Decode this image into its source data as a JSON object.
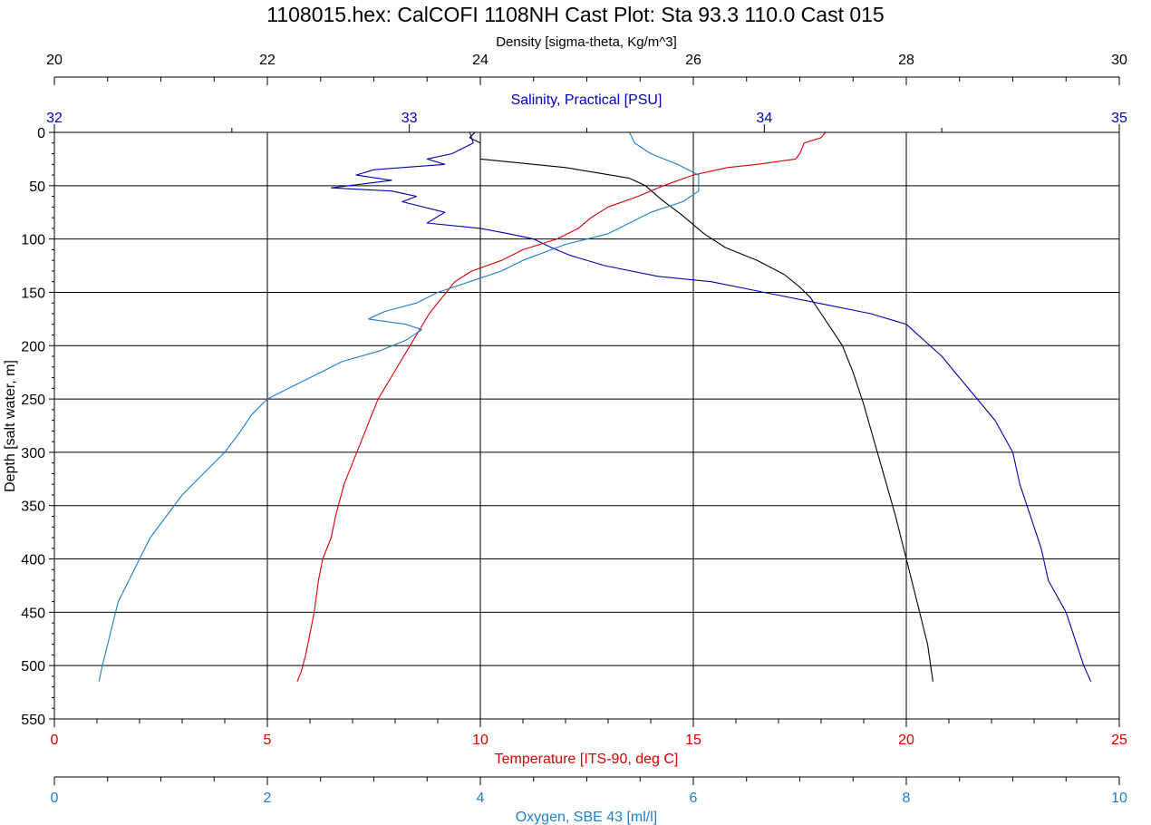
{
  "chart_data": {
    "type": "line",
    "title": "1108015.hex: CalCOFI 1108NH Cast Plot: Sta 93.3 110.0 Cast 015",
    "y_axis": {
      "label": "Depth [salt water, m]",
      "range": [
        0,
        550
      ],
      "ticks": [
        "0",
        "50",
        "100",
        "150",
        "200",
        "250",
        "300",
        "350",
        "400",
        "450",
        "500",
        "550"
      ],
      "reversed": true
    },
    "axes": {
      "density": {
        "label": "Density [sigma-theta, Kg/m^3]",
        "range": [
          20,
          30
        ],
        "ticks": [
          "20",
          "22",
          "24",
          "26",
          "28",
          "30"
        ],
        "position": "top",
        "color": "#000000"
      },
      "salinity": {
        "label": "Salinity, Practical [PSU]",
        "range": [
          32,
          35
        ],
        "ticks": [
          "32",
          "33",
          "34",
          "35"
        ],
        "position": "top",
        "color": "#0000b4"
      },
      "temperature": {
        "label": "Temperature [ITS-90, deg C]",
        "range": [
          0,
          25
        ],
        "ticks": [
          "0",
          "5",
          "10",
          "15",
          "20",
          "25"
        ],
        "position": "bottom",
        "color": "#d40000"
      },
      "oxygen": {
        "label": "Oxygen, SBE 43 [ml/l]",
        "range": [
          0,
          10
        ],
        "ticks": [
          "0",
          "2",
          "4",
          "6",
          "8",
          "10"
        ],
        "position": "bottom",
        "color": "#1a7fd0"
      }
    },
    "grid": true,
    "series": [
      {
        "key": "density",
        "axis": "density",
        "color": "#000000",
        "points": [
          [
            23.95,
            0
          ],
          [
            23.9,
            5
          ],
          [
            24.0,
            10
          ],
          [
            24.0,
            25
          ],
          [
            24.3,
            28
          ],
          [
            24.8,
            33
          ],
          [
            25.1,
            38
          ],
          [
            25.4,
            43
          ],
          [
            25.55,
            50
          ],
          [
            25.7,
            63
          ],
          [
            25.9,
            78
          ],
          [
            26.1,
            95
          ],
          [
            26.3,
            108
          ],
          [
            26.6,
            120
          ],
          [
            26.85,
            133
          ],
          [
            27.0,
            145
          ],
          [
            27.1,
            155
          ],
          [
            27.2,
            170
          ],
          [
            27.3,
            185
          ],
          [
            27.4,
            200
          ],
          [
            27.5,
            225
          ],
          [
            27.6,
            255
          ],
          [
            27.7,
            290
          ],
          [
            27.8,
            325
          ],
          [
            27.9,
            360
          ],
          [
            28.0,
            400
          ],
          [
            28.1,
            440
          ],
          [
            28.2,
            480
          ],
          [
            28.25,
            515
          ]
        ]
      },
      {
        "key": "salinity",
        "axis": "salinity",
        "color": "#0000b4",
        "points": [
          [
            33.17,
            0
          ],
          [
            33.18,
            10
          ],
          [
            33.12,
            20
          ],
          [
            33.05,
            25
          ],
          [
            33.1,
            30
          ],
          [
            32.9,
            35
          ],
          [
            32.85,
            40
          ],
          [
            32.95,
            45
          ],
          [
            32.78,
            52
          ],
          [
            32.95,
            55
          ],
          [
            33.02,
            60
          ],
          [
            32.98,
            65
          ],
          [
            33.1,
            75
          ],
          [
            33.05,
            85
          ],
          [
            33.2,
            90
          ],
          [
            33.28,
            95
          ],
          [
            33.35,
            100
          ],
          [
            33.4,
            108
          ],
          [
            33.45,
            115
          ],
          [
            33.55,
            125
          ],
          [
            33.7,
            135
          ],
          [
            33.85,
            140
          ],
          [
            34.0,
            150
          ],
          [
            34.15,
            160
          ],
          [
            34.3,
            170
          ],
          [
            34.4,
            180
          ],
          [
            34.45,
            195
          ],
          [
            34.5,
            210
          ],
          [
            34.55,
            230
          ],
          [
            34.6,
            250
          ],
          [
            34.65,
            270
          ],
          [
            34.7,
            300
          ],
          [
            34.72,
            330
          ],
          [
            34.75,
            360
          ],
          [
            34.78,
            390
          ],
          [
            34.8,
            420
          ],
          [
            34.85,
            450
          ],
          [
            34.88,
            480
          ],
          [
            34.9,
            500
          ],
          [
            34.92,
            515
          ]
        ]
      },
      {
        "key": "temperature",
        "axis": "temperature",
        "color": "#d40000",
        "points": [
          [
            18.1,
            0
          ],
          [
            18.0,
            5
          ],
          [
            17.6,
            10
          ],
          [
            17.5,
            20
          ],
          [
            17.4,
            25
          ],
          [
            16.5,
            30
          ],
          [
            15.8,
            33
          ],
          [
            15.0,
            40
          ],
          [
            14.3,
            50
          ],
          [
            13.7,
            60
          ],
          [
            13.0,
            70
          ],
          [
            12.6,
            80
          ],
          [
            12.3,
            90
          ],
          [
            11.8,
            100
          ],
          [
            11.0,
            110
          ],
          [
            10.5,
            120
          ],
          [
            9.8,
            130
          ],
          [
            9.4,
            140
          ],
          [
            9.3,
            145
          ],
          [
            9.0,
            160
          ],
          [
            8.8,
            170
          ],
          [
            8.5,
            190
          ],
          [
            8.2,
            210
          ],
          [
            7.9,
            230
          ],
          [
            7.6,
            250
          ],
          [
            7.4,
            270
          ],
          [
            7.2,
            290
          ],
          [
            7.0,
            310
          ],
          [
            6.8,
            330
          ],
          [
            6.6,
            360
          ],
          [
            6.5,
            380
          ],
          [
            6.3,
            400
          ],
          [
            6.2,
            420
          ],
          [
            6.1,
            450
          ],
          [
            6.0,
            470
          ],
          [
            5.9,
            490
          ],
          [
            5.8,
            505
          ],
          [
            5.7,
            515
          ]
        ]
      },
      {
        "key": "oxygen",
        "axis": "oxygen",
        "color": "#1a7fd0",
        "points": [
          [
            5.4,
            0
          ],
          [
            5.45,
            10
          ],
          [
            5.6,
            20
          ],
          [
            5.85,
            30
          ],
          [
            6.05,
            40
          ],
          [
            6.05,
            55
          ],
          [
            5.9,
            65
          ],
          [
            5.6,
            75
          ],
          [
            5.4,
            85
          ],
          [
            5.2,
            95
          ],
          [
            4.8,
            105
          ],
          [
            4.4,
            120
          ],
          [
            4.2,
            130
          ],
          [
            3.9,
            140
          ],
          [
            3.6,
            150
          ],
          [
            3.4,
            160
          ],
          [
            3.1,
            168
          ],
          [
            2.95,
            175
          ],
          [
            3.3,
            180
          ],
          [
            3.45,
            185
          ],
          [
            3.3,
            195
          ],
          [
            3.05,
            205
          ],
          [
            2.7,
            215
          ],
          [
            2.5,
            225
          ],
          [
            2.2,
            240
          ],
          [
            2.0,
            250
          ],
          [
            1.85,
            265
          ],
          [
            1.75,
            280
          ],
          [
            1.6,
            300
          ],
          [
            1.4,
            320
          ],
          [
            1.2,
            340
          ],
          [
            1.05,
            360
          ],
          [
            0.9,
            380
          ],
          [
            0.8,
            400
          ],
          [
            0.7,
            420
          ],
          [
            0.6,
            440
          ],
          [
            0.55,
            460
          ],
          [
            0.5,
            480
          ],
          [
            0.45,
            500
          ],
          [
            0.42,
            515
          ]
        ]
      }
    ]
  }
}
